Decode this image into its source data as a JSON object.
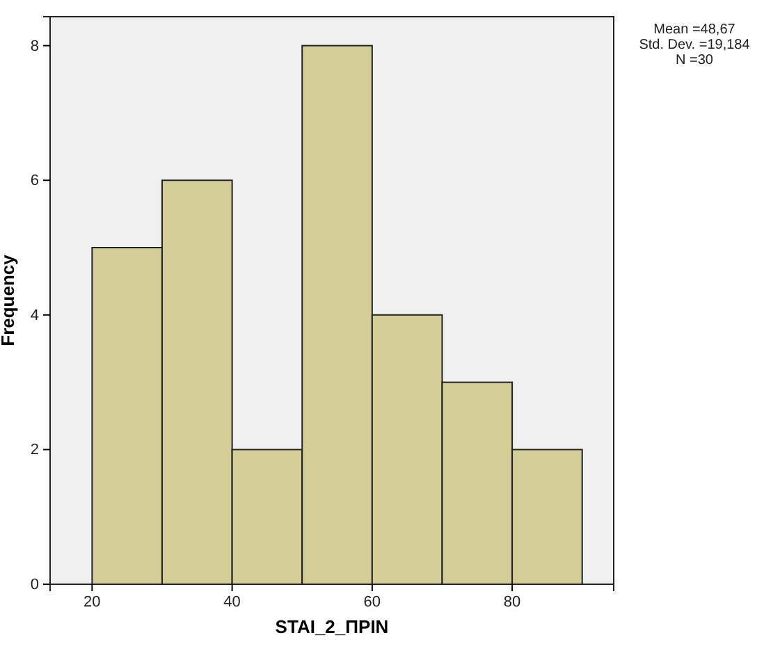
{
  "chart_data": {
    "type": "histogram",
    "xlabel": "STAI_2_ΠΡΙΝ",
    "ylabel": "Frequency",
    "bins": [
      20,
      30,
      40,
      50,
      60,
      70,
      80,
      90
    ],
    "values": [
      5,
      6,
      2,
      8,
      4,
      3,
      2
    ],
    "color": "#d3ce97",
    "xlim": [
      14,
      94.5
    ],
    "xticks": [
      20,
      40,
      60,
      80
    ],
    "ylim": [
      0,
      8.43
    ],
    "yticks": [
      0,
      2,
      4,
      6,
      8
    ],
    "grid": false,
    "annotations": [
      "Mean =48,67",
      "Std. Dev. =19,184",
      "N =30"
    ]
  }
}
